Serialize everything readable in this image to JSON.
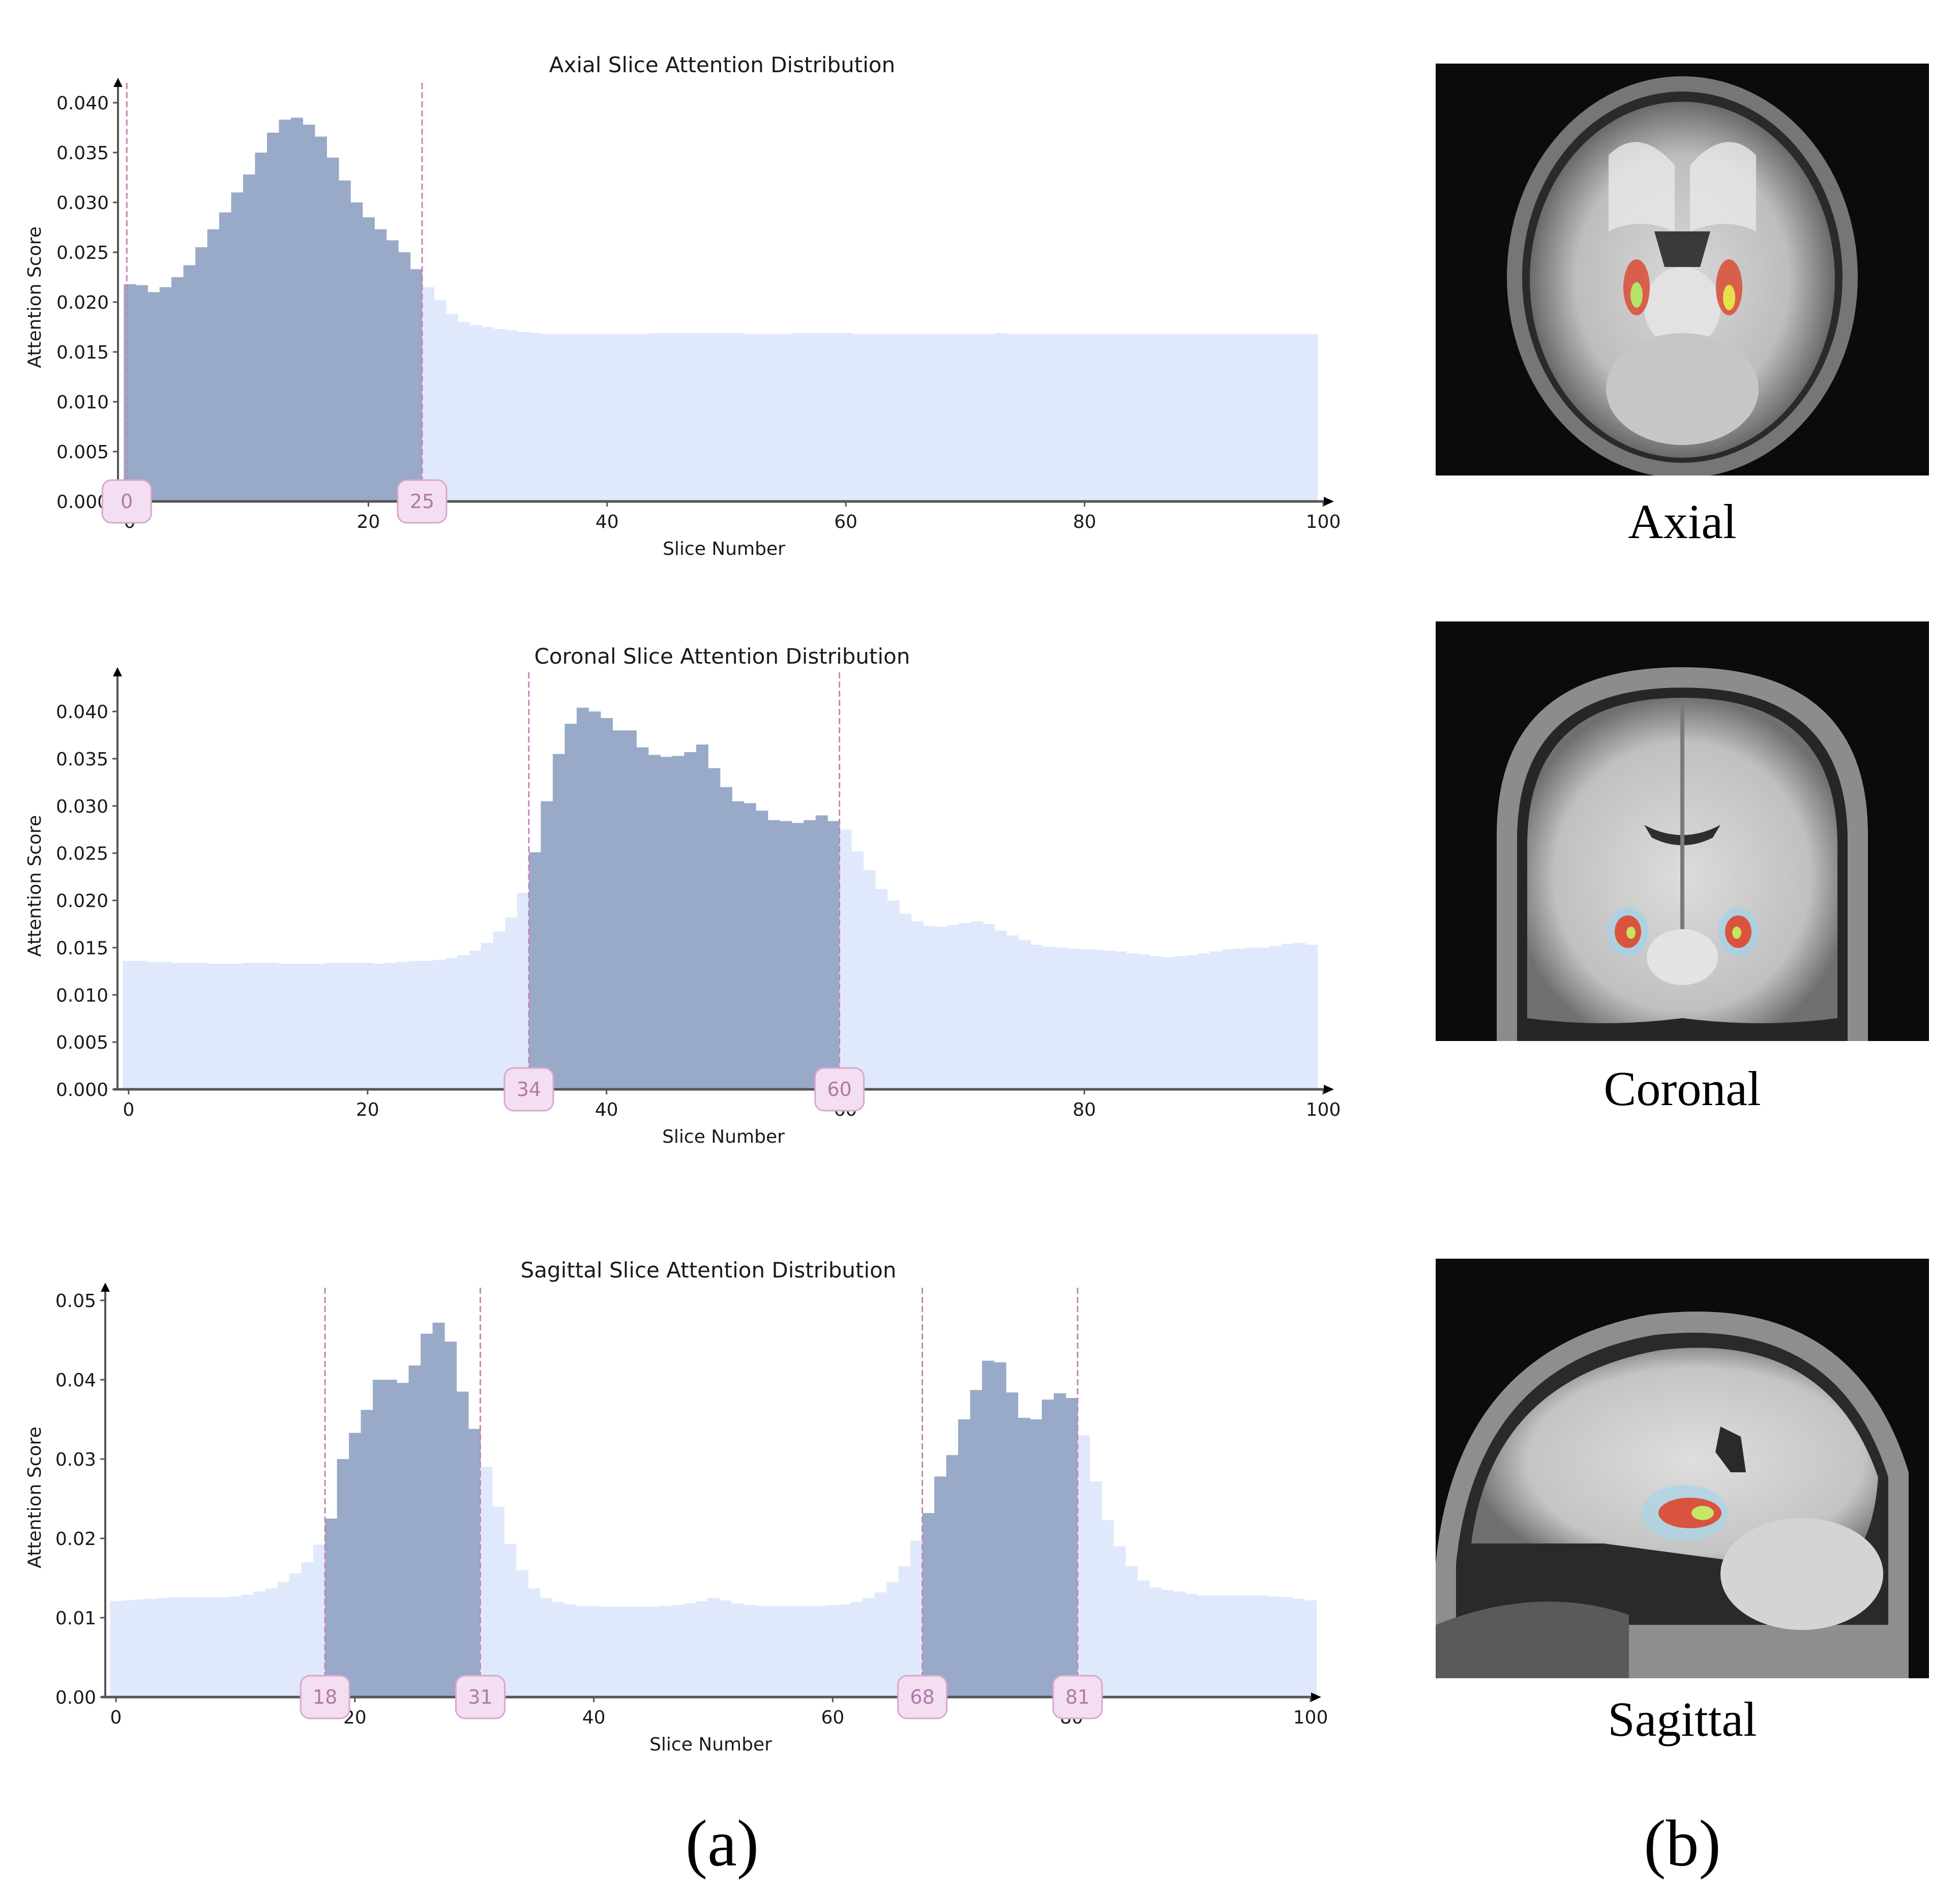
{
  "chart_data": [
    {
      "id": "axial",
      "type": "bar",
      "title": "Axial Slice Attention Distribution",
      "xlabel": "Slice Number",
      "ylabel": "Attention Score",
      "x_ticks": [
        0,
        20,
        40,
        60,
        80,
        100
      ],
      "y_ticks": [
        "0.000",
        "0.005",
        "0.010",
        "0.015",
        "0.020",
        "0.025",
        "0.030",
        "0.035",
        "0.040"
      ],
      "y_tick_values": [
        0,
        0.005,
        0.01,
        0.015,
        0.02,
        0.025,
        0.03,
        0.035,
        0.04
      ],
      "xlim": [
        -0.5,
        100
      ],
      "ylim": [
        0,
        0.0425
      ],
      "grid": false,
      "highlight_ranges": [
        [
          0,
          25
        ]
      ],
      "markers": [
        0,
        25
      ],
      "x": "slices 0-99",
      "values": [
        0.0218,
        0.0217,
        0.021,
        0.0215,
        0.0225,
        0.0237,
        0.0255,
        0.0273,
        0.029,
        0.031,
        0.0328,
        0.035,
        0.037,
        0.0383,
        0.0385,
        0.0378,
        0.0366,
        0.0345,
        0.0322,
        0.03,
        0.0285,
        0.0273,
        0.0262,
        0.025,
        0.0233,
        0.0215,
        0.0202,
        0.0188,
        0.018,
        0.0177,
        0.0175,
        0.0173,
        0.0172,
        0.017,
        0.0169,
        0.0168,
        0.0168,
        0.0168,
        0.0168,
        0.0168,
        0.0168,
        0.0168,
        0.0168,
        0.0168,
        0.0169,
        0.0169,
        0.0169,
        0.0169,
        0.0169,
        0.0169,
        0.0169,
        0.0169,
        0.0168,
        0.0168,
        0.0168,
        0.0168,
        0.0169,
        0.0169,
        0.0169,
        0.0169,
        0.0169,
        0.0168,
        0.0168,
        0.0168,
        0.0168,
        0.0168,
        0.0168,
        0.0168,
        0.0168,
        0.0168,
        0.0168,
        0.0168,
        0.0168,
        0.0169,
        0.0168,
        0.0168,
        0.0168,
        0.0168,
        0.0168,
        0.0168,
        0.0168,
        0.0168,
        0.0168,
        0.0168,
        0.0168,
        0.0168,
        0.0168,
        0.0168,
        0.0168,
        0.0168,
        0.0168,
        0.0168,
        0.0168,
        0.0168,
        0.0168,
        0.0168,
        0.0168,
        0.0168,
        0.0168,
        0.0168
      ]
    },
    {
      "id": "coronal",
      "type": "bar",
      "title": "Coronal Slice Attention Distribution",
      "xlabel": "Slice Number",
      "ylabel": "Attention Score",
      "x_ticks": [
        0,
        20,
        40,
        60,
        80,
        100
      ],
      "y_ticks": [
        "0.000",
        "0.005",
        "0.010",
        "0.015",
        "0.020",
        "0.025",
        "0.030",
        "0.035",
        "0.040"
      ],
      "y_tick_values": [
        0,
        0.005,
        0.01,
        0.015,
        0.02,
        0.025,
        0.03,
        0.035,
        0.04
      ],
      "xlim": [
        -0.5,
        100
      ],
      "ylim": [
        0,
        0.0445
      ],
      "grid": false,
      "highlight_ranges": [
        [
          34,
          60
        ]
      ],
      "markers": [
        34,
        60
      ],
      "x": "slices 0-99",
      "values": [
        0.0136,
        0.0136,
        0.0135,
        0.0135,
        0.0134,
        0.0134,
        0.0134,
        0.0133,
        0.0133,
        0.0133,
        0.0134,
        0.0134,
        0.0134,
        0.0133,
        0.0133,
        0.0133,
        0.0133,
        0.0134,
        0.0134,
        0.0134,
        0.0134,
        0.0133,
        0.0134,
        0.0135,
        0.0136,
        0.0136,
        0.0137,
        0.0139,
        0.0142,
        0.0147,
        0.0155,
        0.0167,
        0.0182,
        0.0208,
        0.0251,
        0.0305,
        0.0355,
        0.0387,
        0.0404,
        0.04,
        0.0393,
        0.038,
        0.038,
        0.0362,
        0.0354,
        0.0352,
        0.0353,
        0.0357,
        0.0365,
        0.034,
        0.032,
        0.0305,
        0.0303,
        0.0295,
        0.0285,
        0.0284,
        0.0282,
        0.0285,
        0.029,
        0.0284,
        0.0275,
        0.0252,
        0.0232,
        0.0212,
        0.02,
        0.0186,
        0.0178,
        0.0173,
        0.0172,
        0.0174,
        0.0176,
        0.0178,
        0.0175,
        0.0168,
        0.0163,
        0.0158,
        0.0153,
        0.0151,
        0.015,
        0.0149,
        0.0148,
        0.0148,
        0.0147,
        0.0146,
        0.0144,
        0.0143,
        0.0141,
        0.014,
        0.0141,
        0.0142,
        0.0144,
        0.0146,
        0.0148,
        0.0149,
        0.015,
        0.015,
        0.0152,
        0.0154,
        0.0155,
        0.0153
      ]
    },
    {
      "id": "sagittal",
      "type": "bar",
      "title": "Sagittal Slice Attention Distribution",
      "xlabel": "Slice Number",
      "ylabel": "Attention Score",
      "x_ticks": [
        0,
        20,
        40,
        60,
        80,
        100
      ],
      "y_ticks": [
        "0.00",
        "0.01",
        "0.02",
        "0.03",
        "0.04",
        "0.05"
      ],
      "y_tick_values": [
        0,
        0.01,
        0.02,
        0.03,
        0.04,
        0.05
      ],
      "xlim": [
        -0.5,
        100
      ],
      "ylim": [
        0,
        0.052
      ],
      "grid": false,
      "highlight_ranges": [
        [
          18,
          31
        ],
        [
          68,
          81
        ]
      ],
      "markers": [
        18,
        31,
        68,
        81
      ],
      "x": "slices 0-99",
      "values": [
        0.0121,
        0.0122,
        0.0123,
        0.0124,
        0.0125,
        0.0126,
        0.0126,
        0.0126,
        0.0126,
        0.0126,
        0.0127,
        0.0129,
        0.0133,
        0.0137,
        0.0145,
        0.0156,
        0.017,
        0.0192,
        0.0225,
        0.03,
        0.0333,
        0.0362,
        0.04,
        0.04,
        0.0396,
        0.0418,
        0.0458,
        0.0472,
        0.0448,
        0.0385,
        0.0338,
        0.029,
        0.024,
        0.0193,
        0.016,
        0.0137,
        0.0125,
        0.012,
        0.0117,
        0.0115,
        0.0115,
        0.0114,
        0.0114,
        0.0114,
        0.0114,
        0.0114,
        0.0115,
        0.0116,
        0.0118,
        0.0121,
        0.0125,
        0.0122,
        0.0118,
        0.0116,
        0.0115,
        0.0115,
        0.0115,
        0.0115,
        0.0115,
        0.0115,
        0.0116,
        0.0117,
        0.012,
        0.0125,
        0.0132,
        0.0145,
        0.0165,
        0.0197,
        0.0232,
        0.0278,
        0.0305,
        0.035,
        0.0387,
        0.0424,
        0.0422,
        0.0384,
        0.0352,
        0.035,
        0.0375,
        0.0383,
        0.0377,
        0.033,
        0.0272,
        0.0223,
        0.019,
        0.0165,
        0.0147,
        0.0138,
        0.0135,
        0.0133,
        0.013,
        0.0128,
        0.0128,
        0.0128,
        0.0128,
        0.0128,
        0.0128,
        0.0127,
        0.0126,
        0.0124,
        0.0122
      ]
    }
  ],
  "colors": {
    "highlight_bar": "#99a9c8",
    "background_bar": "#e0e9fb",
    "marker_line": "#c584b8",
    "badge_fill": "#f4def2",
    "badge_border": "#d8a8ce",
    "badge_text": "#b07aa6",
    "axis": "#555555"
  },
  "brain_panels": [
    {
      "id": "axial",
      "caption": "Axial"
    },
    {
      "id": "coronal",
      "caption": "Coronal"
    },
    {
      "id": "sagittal",
      "caption": "Sagittal"
    }
  ],
  "panel_captions": {
    "left": "(a)",
    "right": "(b)"
  }
}
